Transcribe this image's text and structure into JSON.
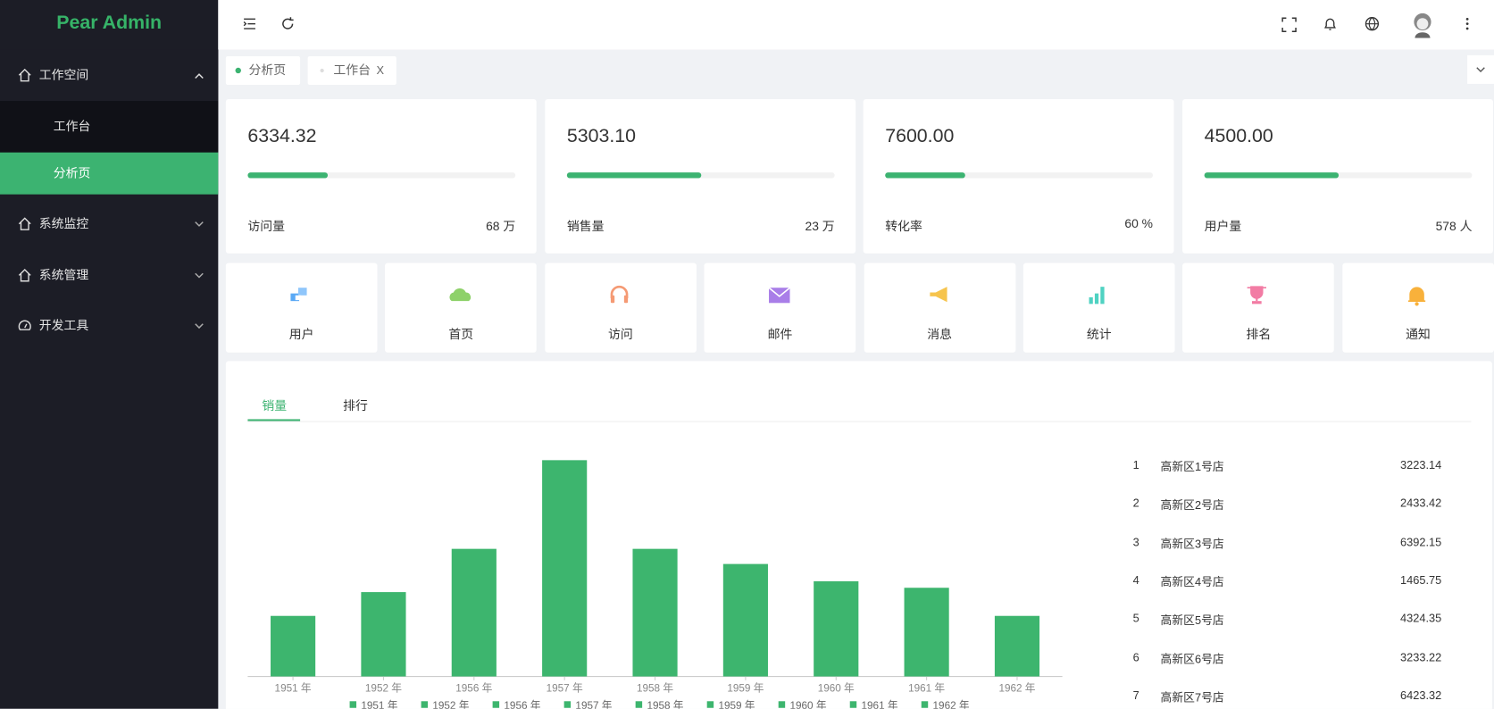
{
  "sidebar": {
    "logo": "Pear Admin",
    "menu": [
      {
        "label": "工作空间",
        "children": [
          "工作台",
          "分析页"
        ]
      },
      {
        "label": "系统监控"
      },
      {
        "label": "系统管理"
      },
      {
        "label": "开发工具"
      }
    ]
  },
  "tabs": [
    {
      "label": "分析页"
    },
    {
      "label": "工作台",
      "close": "X"
    }
  ],
  "stats": [
    {
      "value": "6334.32",
      "progress": 30,
      "label": "访问量",
      "extra": "68 万"
    },
    {
      "value": "5303.10",
      "progress": 50,
      "label": "销售量",
      "extra": "23 万"
    },
    {
      "value": "7600.00",
      "progress": 30,
      "label": "转化率",
      "extra": "60 %"
    },
    {
      "value": "4500.00",
      "progress": 50,
      "label": "用户量",
      "extra": "578 人"
    }
  ],
  "shortcuts": [
    "用户",
    "首页",
    "访问",
    "邮件",
    "消息",
    "统计",
    "排名",
    "通知"
  ],
  "panel_tabs": [
    "销量",
    "排行"
  ],
  "chart_data": {
    "type": "bar",
    "categories": [
      "1951 年",
      "1952 年",
      "1956 年",
      "1957 年",
      "1958 年",
      "1959 年",
      "1960 年",
      "1961 年",
      "1962 年"
    ],
    "values": [
      28,
      39,
      59,
      100,
      59,
      52,
      44,
      41,
      28
    ],
    "color": "#3db56e",
    "legend": "bottom"
  },
  "ranking": [
    {
      "rank": "1",
      "name": "高新区1号店",
      "value": "3223.14"
    },
    {
      "rank": "2",
      "name": "高新区2号店",
      "value": "2433.42"
    },
    {
      "rank": "3",
      "name": "高新区3号店",
      "value": "6392.15"
    },
    {
      "rank": "4",
      "name": "高新区4号店",
      "value": "1465.75"
    },
    {
      "rank": "5",
      "name": "高新区5号店",
      "value": "4324.35"
    },
    {
      "rank": "6",
      "name": "高新区6号店",
      "value": "3233.22"
    },
    {
      "rank": "7",
      "name": "高新区7号店",
      "value": "6423.32"
    }
  ]
}
